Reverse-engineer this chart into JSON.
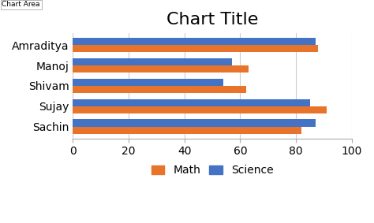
{
  "title": "Chart Title",
  "categories": [
    "Amraditya",
    "Manoj",
    "Shivam",
    "Sujay",
    "Sachin"
  ],
  "math": [
    88,
    63,
    62,
    91,
    82
  ],
  "science": [
    87,
    57,
    54,
    85,
    87
  ],
  "math_color": "#E8732A",
  "science_color": "#4472C4",
  "xlim": [
    0,
    100
  ],
  "xticks": [
    0,
    20,
    40,
    60,
    80,
    100
  ],
  "background_color": "#FFFFFF",
  "chart_area_label": "Chart Area",
  "legend_math": "Math",
  "legend_science": "Science",
  "title_fontsize": 16,
  "tick_fontsize": 10,
  "bar_height": 0.35,
  "grid_color": "#CCCCCC"
}
